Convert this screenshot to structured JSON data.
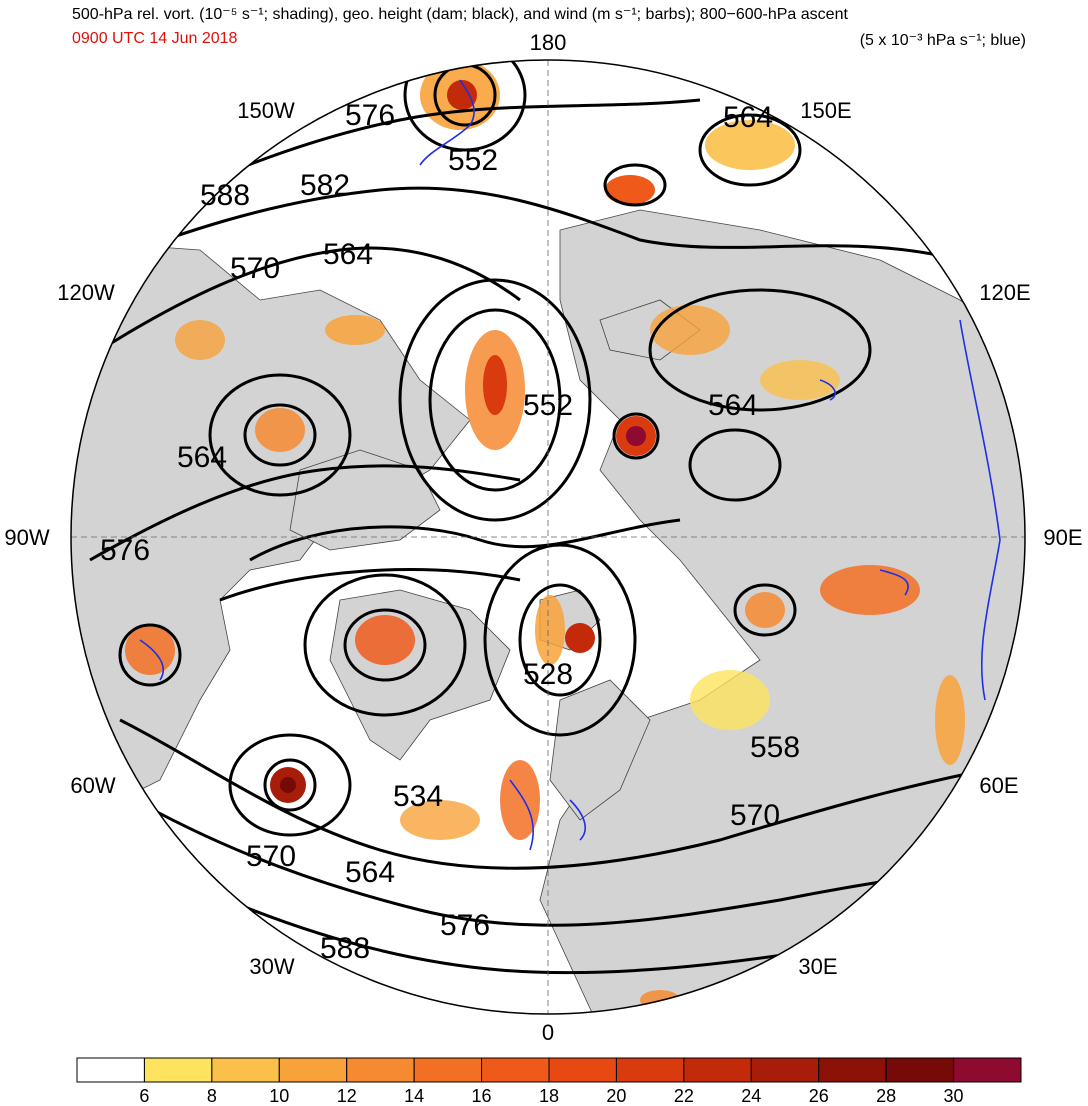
{
  "title": {
    "left_line1": "500-hPa rel. vort. (10⁻⁵ s⁻¹; shading), geo. height (dam; black), and wind (m s⁻¹; barbs); 800−600-hPa ascent",
    "time": "0900 UTC 14 Jun 2018",
    "right_line2": "(5 x 10⁻³ hPa s⁻¹; blue)"
  },
  "longitude_labels": {
    "n180": "180",
    "w150": "150W",
    "e150": "150E",
    "w120": "120W",
    "e120": "120E",
    "w90": "90W",
    "e90": "90E",
    "w60": "60W",
    "e60": "60E",
    "w30": "30W",
    "e30": "30E",
    "s0": "0"
  },
  "height_contour_labels": [
    "576",
    "552",
    "564",
    "582",
    "588",
    "570",
    "564",
    "552",
    "564",
    "564",
    "576",
    "528",
    "558",
    "534",
    "570",
    "570",
    "564",
    "576",
    "588"
  ],
  "colorbar": {
    "ticks": [
      "6",
      "8",
      "10",
      "12",
      "14",
      "16",
      "18",
      "20",
      "22",
      "24",
      "26",
      "28",
      "30"
    ],
    "colors": [
      "#ffffff",
      "#fde35e",
      "#fbc04a",
      "#f8a23a",
      "#f58a30",
      "#f27024",
      "#ef5a1b",
      "#e84812",
      "#d93a0e",
      "#c32a0a",
      "#a81d09",
      "#8c1207",
      "#760a08",
      "#8e0a30"
    ]
  },
  "colors": {
    "land": "#d3d3d3",
    "ocean": "#ffffff",
    "contour": "#000000",
    "ascent": "#1f2fe6",
    "title_time": "#e0100c"
  }
}
